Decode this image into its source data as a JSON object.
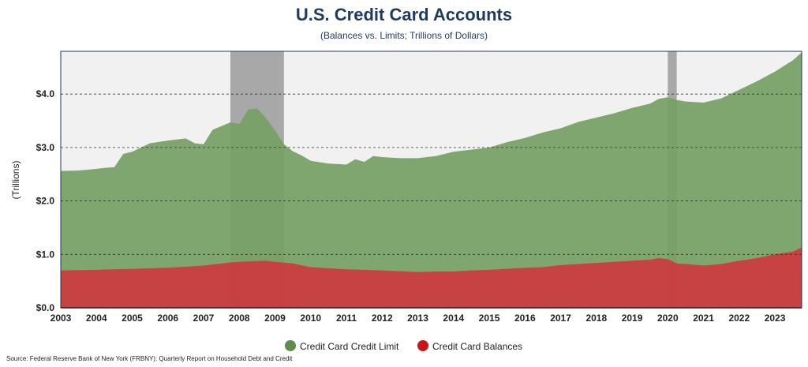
{
  "title": "U.S. Credit Card Accounts",
  "subtitle": "(Balances vs. Limits; Trillions of Dollars)",
  "source": "Source: Federal Reserve Bank of New York (FRBNY): Quarterly Report on Household Debt and Credit",
  "chart_data": {
    "type": "area",
    "title": "U.S. Credit Card Accounts",
    "subtitle": "(Balances vs. Limits; Trillions of Dollars)",
    "xlabel": "",
    "ylabel": "(Trillions)",
    "xlim": [
      2003,
      2023.75
    ],
    "ylim": [
      0,
      4.8
    ],
    "y_ticks": [
      0,
      1,
      2,
      3,
      4
    ],
    "y_tick_labels": [
      "$0.0",
      "$1.0",
      "$2.0",
      "$3.0",
      "$4.0"
    ],
    "x_ticks": [
      2003,
      2004,
      2005,
      2006,
      2007,
      2008,
      2009,
      2010,
      2011,
      2012,
      2013,
      2014,
      2015,
      2016,
      2017,
      2018,
      2019,
      2020,
      2021,
      2022,
      2023
    ],
    "grid": "horizontal dashed",
    "legend_position": "bottom",
    "recessions": [
      [
        2007.75,
        2009.25
      ],
      [
        2020.0,
        2020.25
      ]
    ],
    "recession_color": "#a8a8a8",
    "series": [
      {
        "name": "Credit Card Credit Limit",
        "color": "#77a065",
        "x": [
          2003.0,
          2003.5,
          2004.0,
          2004.25,
          2004.5,
          2004.75,
          2005.0,
          2005.5,
          2006.0,
          2006.5,
          2006.75,
          2007.0,
          2007.25,
          2007.5,
          2007.75,
          2008.0,
          2008.25,
          2008.5,
          2008.75,
          2009.0,
          2009.25,
          2009.5,
          2009.75,
          2010.0,
          2010.5,
          2011.0,
          2011.25,
          2011.5,
          2011.75,
          2012.0,
          2012.5,
          2013.0,
          2013.5,
          2014.0,
          2014.5,
          2015.0,
          2015.5,
          2016.0,
          2016.5,
          2017.0,
          2017.5,
          2018.0,
          2018.5,
          2019.0,
          2019.5,
          2019.75,
          2020.0,
          2020.25,
          2020.5,
          2021.0,
          2021.5,
          2022.0,
          2022.5,
          2023.0,
          2023.5,
          2023.75
        ],
        "values": [
          2.56,
          2.57,
          2.6,
          2.62,
          2.63,
          2.88,
          2.92,
          3.08,
          3.13,
          3.17,
          3.08,
          3.06,
          3.33,
          3.4,
          3.47,
          3.44,
          3.71,
          3.73,
          3.55,
          3.32,
          3.06,
          2.93,
          2.85,
          2.75,
          2.7,
          2.68,
          2.78,
          2.73,
          2.84,
          2.82,
          2.8,
          2.8,
          2.84,
          2.92,
          2.96,
          3.0,
          3.1,
          3.18,
          3.28,
          3.36,
          3.48,
          3.56,
          3.64,
          3.74,
          3.82,
          3.91,
          3.94,
          3.89,
          3.86,
          3.84,
          3.92,
          4.08,
          4.24,
          4.42,
          4.63,
          4.78
        ]
      },
      {
        "name": "Credit Card Balances",
        "color": "#cc3a3f",
        "x": [
          2003.0,
          2004.0,
          2005.0,
          2006.0,
          2007.0,
          2007.75,
          2008.0,
          2008.75,
          2009.0,
          2009.5,
          2010.0,
          2011.0,
          2011.5,
          2012.0,
          2013.0,
          2013.5,
          2014.0,
          2014.5,
          2015.0,
          2015.5,
          2016.0,
          2016.5,
          2017.0,
          2017.5,
          2018.0,
          2018.5,
          2019.0,
          2019.5,
          2019.75,
          2020.0,
          2020.25,
          2020.5,
          2021.0,
          2021.5,
          2022.0,
          2022.5,
          2023.0,
          2023.5,
          2023.75
        ],
        "values": [
          0.7,
          0.71,
          0.73,
          0.75,
          0.79,
          0.85,
          0.86,
          0.88,
          0.86,
          0.83,
          0.76,
          0.72,
          0.71,
          0.7,
          0.67,
          0.68,
          0.68,
          0.7,
          0.71,
          0.73,
          0.75,
          0.76,
          0.8,
          0.82,
          0.84,
          0.86,
          0.88,
          0.9,
          0.93,
          0.91,
          0.83,
          0.82,
          0.79,
          0.82,
          0.88,
          0.93,
          1.0,
          1.05,
          1.13
        ]
      }
    ]
  }
}
